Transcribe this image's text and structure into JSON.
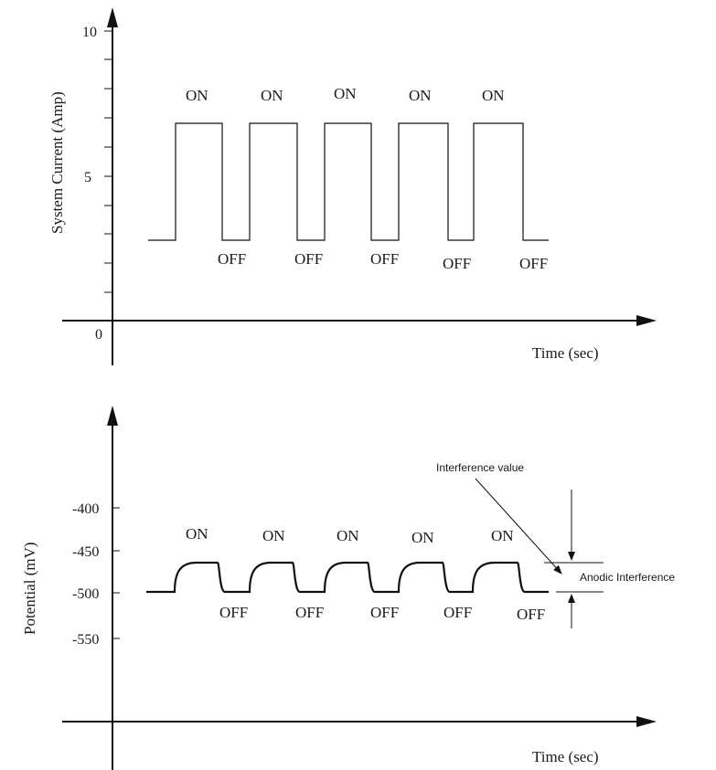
{
  "chart_data": [
    {
      "type": "line",
      "ylabel": "System Current (Amp)",
      "xlabel": "Time (sec)",
      "yticks": [
        "10",
        "5",
        "0"
      ],
      "ylim": [
        0,
        10
      ],
      "series": [
        {
          "on_value": 6.8,
          "off_value": 2.8
        }
      ],
      "on_labels": [
        "ON",
        "ON",
        "ON",
        "ON",
        "ON"
      ],
      "off_labels": [
        "OFF",
        "OFF",
        "OFF",
        "OFF",
        "OFF"
      ]
    },
    {
      "type": "line",
      "ylabel": "Potential (mV)",
      "xlabel": "Time (sec)",
      "yticks": [
        "-400",
        "-450",
        "-500",
        "-550"
      ],
      "series": [
        {
          "on_value": -465,
          "off_value": -500
        }
      ],
      "on_labels": [
        "ON",
        "ON",
        "ON",
        "ON",
        "ON"
      ],
      "off_labels": [
        "OFF",
        "OFF",
        "OFF",
        "OFF",
        "OFF"
      ],
      "annotations": {
        "interference_value": "Interference value",
        "anodic_interference": "Anodic Interference"
      }
    }
  ]
}
